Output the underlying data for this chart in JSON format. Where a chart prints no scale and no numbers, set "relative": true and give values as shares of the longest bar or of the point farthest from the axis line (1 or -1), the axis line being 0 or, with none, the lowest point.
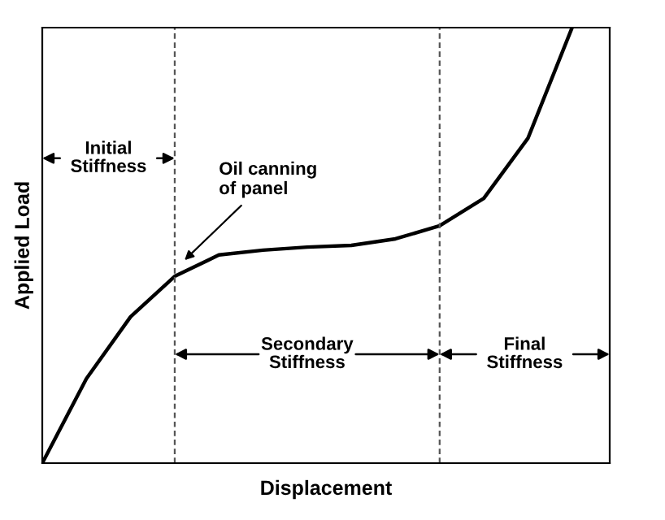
{
  "chart_data": {
    "type": "line",
    "relative": true,
    "xlabel": "Displacement",
    "ylabel": "Applied Load",
    "categories": [
      null,
      null,
      null,
      null,
      null,
      null,
      null,
      null,
      null,
      null,
      null,
      null,
      null
    ],
    "series": [
      {
        "color": "#000000",
        "values": [
          0,
          0.194,
          0.336,
          0.429,
          0.478,
          0.489,
          0.496,
          0.5,
          0.515,
          0.545,
          0.608,
          0.746,
          1.0
        ]
      }
    ],
    "marker": "none",
    "line_style": "solid",
    "annotations": [
      "Initial\nStiffness",
      "Oil canning\nof panel",
      "Secondary\nStiffness",
      "Final\nStiffness"
    ]
  }
}
